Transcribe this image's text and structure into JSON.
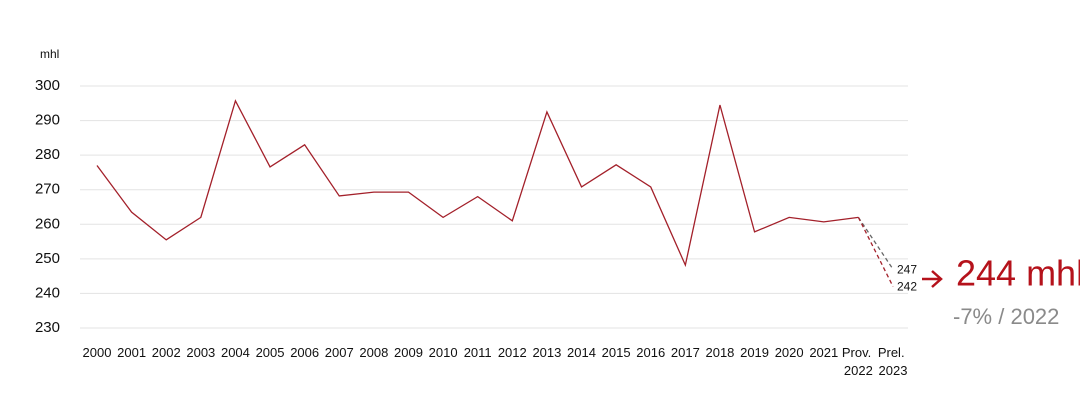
{
  "chart_data": {
    "type": "line",
    "y_label": "mhl",
    "categories": [
      "2000",
      "2001",
      "2002",
      "2003",
      "2004",
      "2005",
      "2006",
      "2007",
      "2008",
      "2009",
      "2010",
      "2011",
      "2012",
      "2013",
      "2014",
      "2015",
      "2016",
      "2017",
      "2018",
      "2019",
      "2020",
      "2021",
      "Prov. 2022",
      "Prel. 2023"
    ],
    "series": [
      {
        "color": "#a3202a",
        "dashed": false,
        "values": [
          277,
          263.5,
          255.5,
          262,
          295.7,
          276.6,
          283,
          268.2,
          269.3,
          269.3,
          262,
          268,
          261,
          292.5,
          270.8,
          277.2,
          270.8,
          248.2,
          294.5,
          257.8,
          262,
          260.7,
          262,
          null
        ]
      },
      {
        "color": "#666666",
        "dashed": true,
        "values": [
          null,
          null,
          null,
          null,
          null,
          null,
          null,
          null,
          null,
          null,
          null,
          null,
          null,
          null,
          null,
          null,
          null,
          null,
          null,
          null,
          null,
          null,
          262,
          247
        ]
      },
      {
        "color": "#a3202a",
        "dashed": true,
        "values": [
          null,
          null,
          null,
          null,
          null,
          null,
          null,
          null,
          null,
          null,
          null,
          null,
          null,
          null,
          null,
          null,
          null,
          null,
          null,
          null,
          null,
          null,
          262,
          242
        ]
      }
    ],
    "ylim": [
      230,
      300
    ],
    "yticks": [
      230,
      240,
      250,
      260,
      270,
      280,
      290,
      300
    ],
    "grid": true,
    "annotation": "244 mhl",
    "annotation_sub": "-7% / 2022",
    "annotation_color": "#b5121b"
  }
}
